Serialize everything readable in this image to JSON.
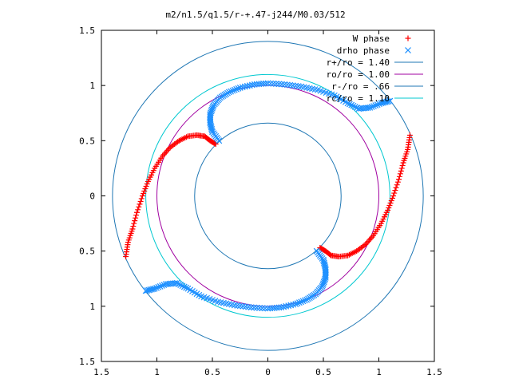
{
  "chart_data": {
    "type": "scatter",
    "title": "m2/n1.5/q1.5/r-+.47-j244/M0.03/512",
    "xlim": [
      -1.5,
      1.5
    ],
    "ylim": [
      -1.5,
      1.5
    ],
    "xticks": [
      -1.5,
      -1,
      -0.5,
      0,
      0.5,
      1,
      1.5
    ],
    "yticks": [
      -1.5,
      -1,
      -0.5,
      0,
      0.5,
      1,
      1.5
    ],
    "xtick_labels": [
      "1.5",
      "1",
      "0.5",
      "0",
      "0.5",
      "1",
      "1.5"
    ],
    "ytick_labels": [
      "1.5",
      "1",
      "0.5",
      "0",
      "0.5",
      "1",
      "1.5"
    ],
    "grid": false,
    "legend_position": "top-right",
    "series": [
      {
        "name": "W phase",
        "marker": "plus",
        "color": "#ff0000",
        "arms": [
          [
            [
              -1.28,
              -0.55
            ],
            [
              -1.26,
              -0.42
            ],
            [
              -1.22,
              -0.3
            ],
            [
              -1.18,
              -0.15
            ],
            [
              -1.13,
              0.0
            ],
            [
              -1.08,
              0.13
            ],
            [
              -1.02,
              0.25
            ],
            [
              -0.95,
              0.36
            ],
            [
              -0.88,
              0.44
            ],
            [
              -0.8,
              0.5
            ],
            [
              -0.72,
              0.54
            ],
            [
              -0.64,
              0.55
            ],
            [
              -0.57,
              0.54
            ],
            [
              -0.52,
              0.5
            ],
            [
              -0.47,
              0.47
            ]
          ],
          [
            [
              1.28,
              0.55
            ],
            [
              1.26,
              0.42
            ],
            [
              1.22,
              0.3
            ],
            [
              1.18,
              0.15
            ],
            [
              1.13,
              0.0
            ],
            [
              1.08,
              -0.13
            ],
            [
              1.02,
              -0.25
            ],
            [
              0.95,
              -0.36
            ],
            [
              0.88,
              -0.44
            ],
            [
              0.8,
              -0.5
            ],
            [
              0.72,
              -0.54
            ],
            [
              0.64,
              -0.55
            ],
            [
              0.57,
              -0.54
            ],
            [
              0.52,
              -0.5
            ],
            [
              0.47,
              -0.47
            ]
          ]
        ]
      },
      {
        "name": "drho phase",
        "marker": "cross",
        "color": "#1e90ff",
        "arms": [
          [
            [
              -0.44,
              0.5
            ],
            [
              -0.5,
              0.58
            ],
            [
              -0.52,
              0.66
            ],
            [
              -0.52,
              0.74
            ],
            [
              -0.49,
              0.82
            ],
            [
              -0.43,
              0.89
            ],
            [
              -0.35,
              0.94
            ],
            [
              -0.25,
              0.98
            ],
            [
              -0.12,
              1.01
            ],
            [
              0.0,
              1.02
            ],
            [
              0.15,
              1.01
            ],
            [
              0.3,
              0.99
            ],
            [
              0.45,
              0.96
            ],
            [
              0.6,
              0.91
            ],
            [
              0.72,
              0.84
            ],
            [
              0.82,
              0.79
            ],
            [
              0.92,
              0.8
            ],
            [
              1.02,
              0.84
            ],
            [
              1.1,
              0.86
            ]
          ],
          [
            [
              0.44,
              -0.5
            ],
            [
              0.5,
              -0.58
            ],
            [
              0.52,
              -0.66
            ],
            [
              0.52,
              -0.74
            ],
            [
              0.49,
              -0.82
            ],
            [
              0.43,
              -0.89
            ],
            [
              0.35,
              -0.94
            ],
            [
              0.25,
              -0.98
            ],
            [
              0.12,
              -1.01
            ],
            [
              0.0,
              -1.02
            ],
            [
              -0.15,
              -1.01
            ],
            [
              -0.3,
              -0.99
            ],
            [
              -0.45,
              -0.96
            ],
            [
              -0.6,
              -0.91
            ],
            [
              -0.72,
              -0.84
            ],
            [
              -0.82,
              -0.79
            ],
            [
              -0.92,
              -0.8
            ],
            [
              -1.02,
              -0.84
            ],
            [
              -1.1,
              -0.86
            ]
          ]
        ]
      }
    ],
    "circles": [
      {
        "name": "r+/ro = 1.40",
        "radius": 1.4,
        "color": "#1f77b4"
      },
      {
        "name": "ro/ro = 1.00",
        "radius": 1.0,
        "color": "#a000a0"
      },
      {
        "name": "r-/ro = .66",
        "radius": 0.66,
        "color": "#1f77b4"
      },
      {
        "name": "rc/ro = 1.10",
        "radius": 1.1,
        "color": "#00c8d0"
      }
    ]
  }
}
